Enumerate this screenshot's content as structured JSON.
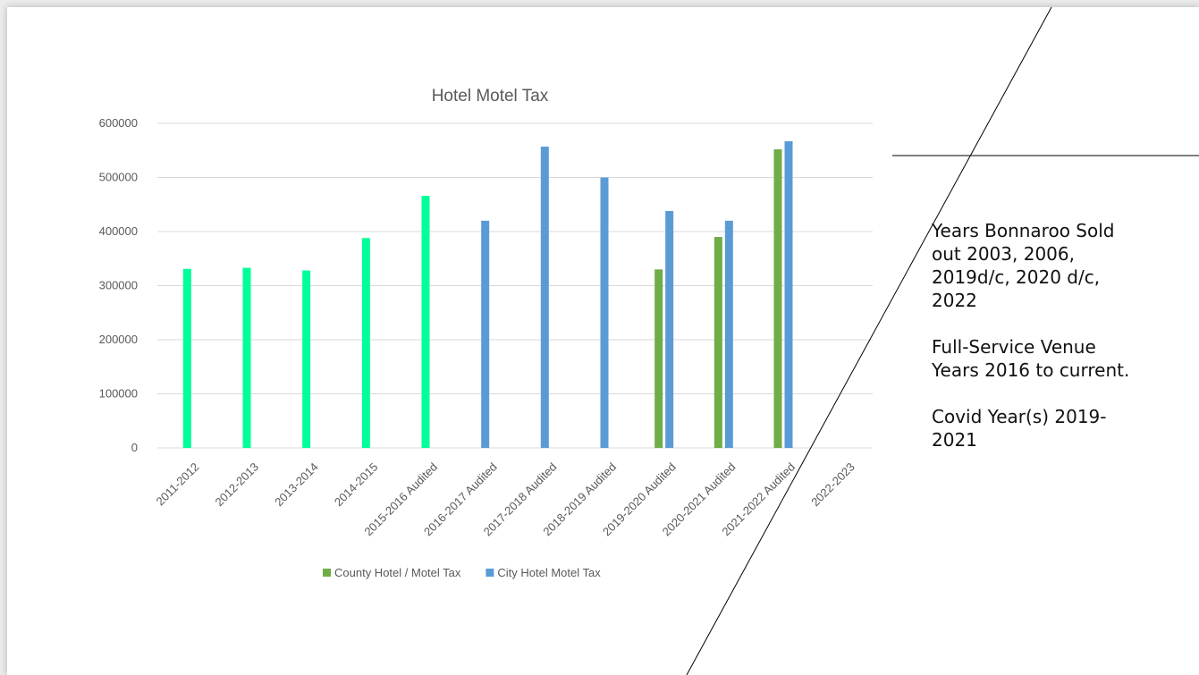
{
  "chart_data": {
    "type": "bar",
    "title": "Hotel Motel Tax",
    "xlabel": "",
    "ylabel": "",
    "ylim": [
      0,
      600000
    ],
    "yticks": [
      0,
      100000,
      200000,
      300000,
      400000,
      500000,
      600000
    ],
    "grid": true,
    "legend_position": "bottom",
    "categories": [
      "2011-2012",
      "2012-2013",
      "2013-2014",
      "2014-2015",
      "2015-2016 Audited",
      "2016-2017 Audited",
      "2017-2018 Audited",
      "2018-2019 Audited",
      "2019-2020 Audited",
      "2020-2021 Audited",
      "2021-2022 Audited",
      "2022-2023"
    ],
    "series": [
      {
        "name": "County Hotel / Motel Tax",
        "legend_color": "#70ad47",
        "values": [
          331000,
          333000,
          328000,
          388000,
          466000,
          null,
          null,
          null,
          330000,
          390000,
          552000,
          null
        ],
        "bar_colors": [
          "#00ff99",
          "#00ff99",
          "#00ff99",
          "#00ff99",
          "#00ff99",
          null,
          null,
          null,
          "#70ad47",
          "#70ad47",
          "#70ad47",
          null
        ]
      },
      {
        "name": "City Hotel Motel Tax",
        "legend_color": "#5b9bd5",
        "values": [
          null,
          null,
          null,
          null,
          null,
          420000,
          557000,
          500000,
          438000,
          420000,
          567000,
          null
        ],
        "bar_colors": [
          null,
          null,
          null,
          null,
          null,
          "#5b9bd5",
          "#5b9bd5",
          "#5b9bd5",
          "#5b9bd5",
          "#5b9bd5",
          "#5b9bd5",
          null
        ]
      }
    ]
  },
  "notes": {
    "bonnaroo": "Years Bonnaroo Sold\nout 2003, 2006,\n2019d/c,  2020 d/c,\n2022",
    "venue": "Full-Service Venue\nYears 2016 to current.",
    "covid": "Covid Year(s) 2019-\n2021"
  },
  "colors": {
    "gridline": "#d9d9d9",
    "axis_text": "#595959",
    "title_text": "#595959",
    "annotation_line": "#000000"
  }
}
